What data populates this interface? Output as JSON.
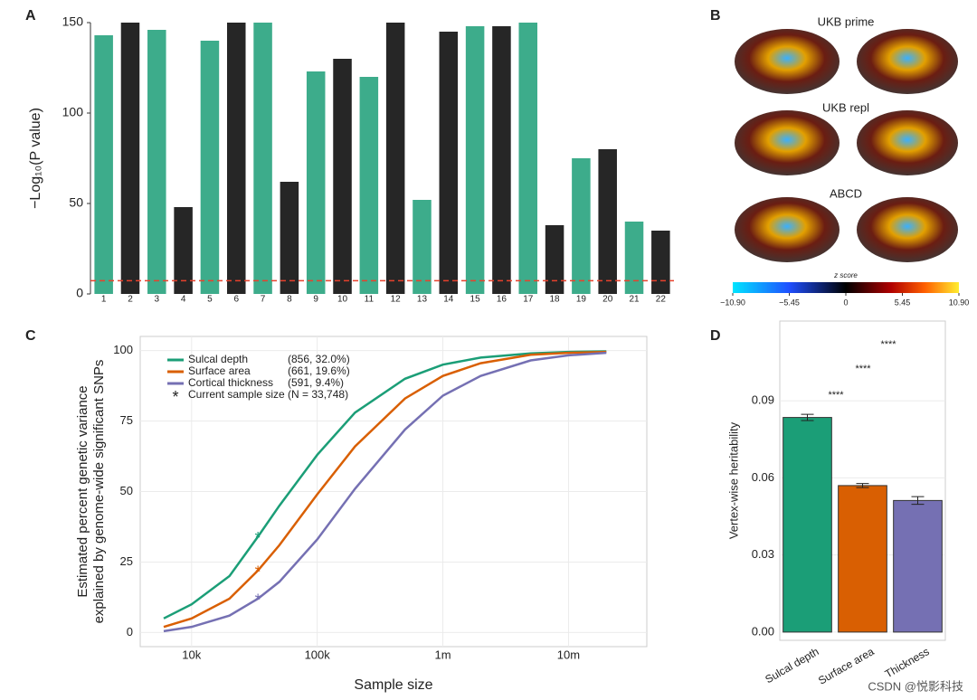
{
  "chart_data": [
    {
      "type": "manhattan",
      "panel": "A",
      "y_label": "−Log₁₀(P value)",
      "categories": [
        "1",
        "2",
        "3",
        "4",
        "5",
        "6",
        "7",
        "8",
        "9",
        "10",
        "11",
        "12",
        "13",
        "14",
        "15",
        "16",
        "17",
        "18",
        "19",
        "20",
        "21",
        "22"
      ],
      "values": [
        143,
        150,
        146,
        48,
        140,
        150,
        150,
        62,
        123,
        130,
        120,
        150,
        52,
        145,
        148,
        148,
        150,
        38,
        75,
        80,
        40,
        35
      ],
      "colors": [
        "#1b9e77",
        "#000000"
      ],
      "threshold": 7.3,
      "threshold_color": "#e8412c",
      "ylim": [
        0,
        150
      ],
      "yticks": [
        0,
        50,
        100,
        150
      ]
    },
    {
      "type": "brain-maps",
      "panel": "B",
      "maps": [
        "UKB prime",
        "UKB repl",
        "ABCD"
      ],
      "colorbar_title": "z score",
      "clim": [
        -10.9,
        10.9
      ],
      "cticks": [
        {
          "value": -10.9,
          "label": "−10.90"
        },
        {
          "value": -5.45,
          "label": "−5.45"
        },
        0,
        {
          "value": 5.45,
          "label": "5.45"
        },
        {
          "value": 10.9,
          "label": "10.90"
        }
      ]
    },
    {
      "type": "line",
      "panel": "C",
      "x_label": "Sample size",
      "y_label": [
        "Estimated percent genetic variance",
        "explained by genome-wide significant SNPs"
      ],
      "log_x": true,
      "grid": true,
      "x": [
        6000,
        10000,
        20000,
        33748,
        50000,
        100000,
        200000,
        500000,
        1000000,
        2000000,
        5000000,
        10000000,
        20000000
      ],
      "series": [
        {
          "name": "Sulcal depth",
          "note": "(856, 32.0%)",
          "color": "#1b9e77",
          "values": [
            5,
            10,
            20,
            34,
            45,
            63,
            78,
            90,
            95,
            97.5,
            99,
            99.5,
            99.7
          ],
          "marker_value": 34
        },
        {
          "name": "Surface area",
          "note": "(661, 19.6%)",
          "color": "#d95f02",
          "values": [
            2,
            5,
            12,
            22,
            31,
            49,
            66,
            83,
            91,
            95.5,
            98.5,
            99.2,
            99.5
          ],
          "marker_value": 22
        },
        {
          "name": "Cortical thickness",
          "note": "(591, 9.4%)",
          "color": "#7570b3",
          "values": [
            0.5,
            2,
            6,
            12,
            18,
            33,
            51,
            72,
            84,
            91,
            96.5,
            98.3,
            99.2
          ],
          "marker_value": 12
        }
      ],
      "current_sample_size": 33748,
      "marker_symbol": "*",
      "marker_label": "Current sample size (N = 33,748)",
      "xlim": [
        3900,
        42000000
      ],
      "xticks": [
        {
          "value": 10000,
          "label": "10k"
        },
        {
          "value": 100000,
          "label": "100k"
        },
        {
          "value": 1000000,
          "label": "1m"
        },
        {
          "value": 10000000,
          "label": "10m"
        }
      ],
      "ylim": [
        -5,
        105
      ],
      "yticks": [
        0,
        25,
        50,
        75,
        100
      ]
    },
    {
      "type": "bar",
      "panel": "D",
      "y_label": "Vertex-wise heritability",
      "grid": true,
      "categories": [
        "Sulcal depth",
        "Surface area",
        "Thickness"
      ],
      "values": [
        0.0835,
        0.057,
        0.0512
      ],
      "errors": [
        0.0012,
        0.0008,
        0.0015
      ],
      "colors": [
        "#1b9e77",
        "#d95f02",
        "#7570b3"
      ],
      "significance_labels": [
        "****",
        "****",
        "****"
      ],
      "ylim": [
        -0.0032,
        0.121
      ],
      "yticks": [
        {
          "value": 0,
          "label": "0.00"
        },
        {
          "value": 0.03,
          "label": "0.03"
        },
        {
          "value": 0.06,
          "label": "0.06"
        },
        {
          "value": 0.09,
          "label": "0.09"
        }
      ]
    }
  ],
  "watermark": "CSDN @悦影科技"
}
